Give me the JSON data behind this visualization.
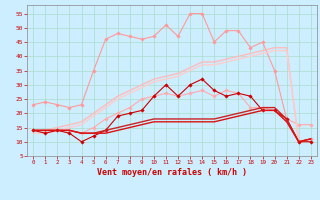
{
  "x": [
    0,
    1,
    2,
    3,
    4,
    5,
    6,
    7,
    8,
    9,
    10,
    11,
    12,
    13,
    14,
    15,
    16,
    17,
    18,
    19,
    20,
    21,
    22,
    23
  ],
  "series": [
    {
      "label": "rafales_light1",
      "color": "#ff9999",
      "lw": 0.8,
      "marker": "D",
      "markersize": 1.8,
      "y": [
        23,
        24,
        23,
        22,
        23,
        35,
        46,
        48,
        47,
        46,
        47,
        51,
        47,
        55,
        55,
        45,
        49,
        49,
        43,
        45,
        35,
        18,
        10,
        11
      ]
    },
    {
      "label": "rafales_light2",
      "color": "#ffaaaa",
      "lw": 0.8,
      "marker": "D",
      "markersize": 1.8,
      "y": [
        14,
        14,
        14,
        14,
        13,
        15,
        18,
        20,
        22,
        25,
        26,
        27,
        26,
        27,
        28,
        26,
        28,
        27,
        22,
        22,
        21,
        18,
        16,
        16
      ]
    },
    {
      "label": "vent_light1",
      "color": "#ffbbbb",
      "lw": 1.0,
      "marker": null,
      "markersize": 0,
      "y": [
        14,
        14,
        15,
        16,
        17,
        20,
        23,
        26,
        28,
        30,
        32,
        33,
        34,
        36,
        38,
        38,
        39,
        40,
        41,
        42,
        43,
        43,
        10,
        11
      ]
    },
    {
      "label": "vent_light2",
      "color": "#ffcccc",
      "lw": 1.0,
      "marker": null,
      "markersize": 0,
      "y": [
        13,
        13,
        14,
        15,
        16,
        19,
        22,
        25,
        27,
        29,
        31,
        32,
        33,
        35,
        37,
        37,
        38,
        39,
        40,
        41,
        42,
        42,
        10,
        11
      ]
    },
    {
      "label": "rafales_dark",
      "color": "#cc0000",
      "lw": 0.8,
      "marker": "D",
      "markersize": 1.8,
      "y": [
        14,
        13,
        14,
        13,
        10,
        12,
        14,
        19,
        20,
        21,
        26,
        30,
        26,
        30,
        32,
        28,
        26,
        27,
        26,
        21,
        21,
        18,
        10,
        10
      ]
    },
    {
      "label": "vent_moyen_dark1",
      "color": "#cc2222",
      "lw": 1.0,
      "marker": null,
      "markersize": 0,
      "y": [
        14,
        14,
        14,
        14,
        13,
        13,
        14,
        15,
        16,
        17,
        18,
        18,
        18,
        18,
        18,
        18,
        19,
        20,
        21,
        22,
        22,
        18,
        10,
        11
      ]
    },
    {
      "label": "vent_moyen_dark2",
      "color": "#dd1111",
      "lw": 1.0,
      "marker": null,
      "markersize": 0,
      "y": [
        14,
        14,
        14,
        14,
        13,
        13,
        13,
        14,
        15,
        16,
        17,
        17,
        17,
        17,
        17,
        17,
        18,
        19,
        20,
        21,
        21,
        17,
        10,
        11
      ]
    }
  ],
  "xlim": [
    -0.5,
    23.5
  ],
  "ylim": [
    5,
    58
  ],
  "yticks": [
    5,
    10,
    15,
    20,
    25,
    30,
    35,
    40,
    45,
    50,
    55
  ],
  "xticks": [
    0,
    1,
    2,
    3,
    4,
    5,
    6,
    7,
    8,
    9,
    10,
    11,
    12,
    13,
    14,
    15,
    16,
    17,
    18,
    19,
    20,
    21,
    22,
    23
  ],
  "xlabel": "Vent moyen/en rafales ( km/h )",
  "bg_color": "#cceeff",
  "grid_color": "#aaddcc",
  "tick_color": "#cc0000",
  "label_color": "#cc0000",
  "spine_color": "#888888"
}
